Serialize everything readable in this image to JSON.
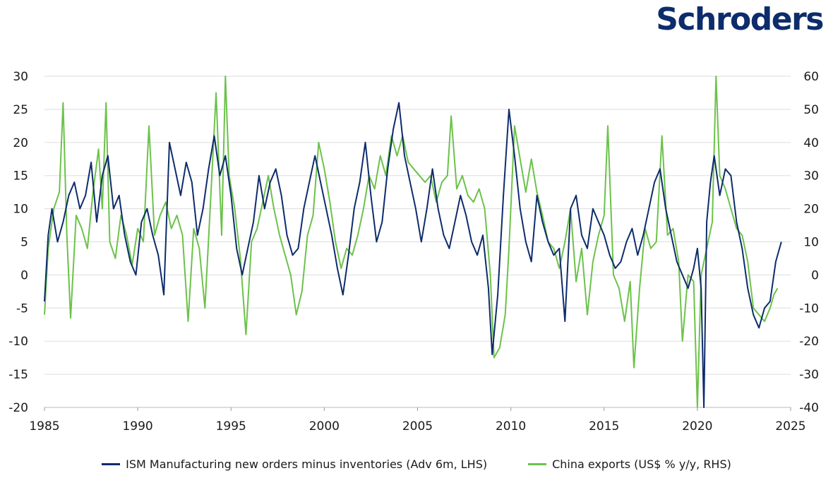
{
  "brand": {
    "name": "Schroders",
    "color": "#0d2c6b"
  },
  "colors": {
    "ism": "#0d2c6b",
    "china": "#6cc24a",
    "grid": "#dddddd"
  },
  "chart_data": {
    "type": "line",
    "title": "",
    "xlabel": "",
    "x_ticks": [
      "1985",
      "1990",
      "1995",
      "2000",
      "2005",
      "2010",
      "2015",
      "2020",
      "2025"
    ],
    "x_range": [
      1985,
      2025
    ],
    "left_axis": {
      "ticks": [
        "30",
        "25",
        "20",
        "15",
        "10",
        "5",
        "0",
        "-5",
        "-10",
        "-15",
        "-20"
      ],
      "range": [
        -20,
        30
      ]
    },
    "right_axis": {
      "ticks": [
        "60",
        "50",
        "40",
        "30",
        "20",
        "10",
        "0",
        "-10",
        "-20",
        "-30",
        "-40"
      ],
      "range": [
        -40,
        60
      ]
    },
    "grid": true,
    "legend_position": "bottom",
    "series": [
      {
        "name": "ISM Manufacturing new orders minus inventories (Adv 6m, LHS)",
        "axis": "left",
        "points": [
          [
            1985.0,
            -4
          ],
          [
            1985.2,
            6
          ],
          [
            1985.4,
            10
          ],
          [
            1985.7,
            5
          ],
          [
            1986.0,
            8
          ],
          [
            1986.3,
            12
          ],
          [
            1986.6,
            14
          ],
          [
            1986.9,
            10
          ],
          [
            1987.2,
            12
          ],
          [
            1987.5,
            17
          ],
          [
            1987.8,
            8
          ],
          [
            1988.1,
            15
          ],
          [
            1988.4,
            18
          ],
          [
            1988.7,
            10
          ],
          [
            1989.0,
            12
          ],
          [
            1989.3,
            6
          ],
          [
            1989.6,
            2
          ],
          [
            1989.9,
            0
          ],
          [
            1990.2,
            8
          ],
          [
            1990.5,
            10
          ],
          [
            1990.8,
            6
          ],
          [
            1991.1,
            3
          ],
          [
            1991.4,
            -3
          ],
          [
            1991.7,
            20
          ],
          [
            1992.0,
            16
          ],
          [
            1992.3,
            12
          ],
          [
            1992.6,
            17
          ],
          [
            1992.9,
            14
          ],
          [
            1993.2,
            6
          ],
          [
            1993.5,
            10
          ],
          [
            1993.8,
            16
          ],
          [
            1994.1,
            21
          ],
          [
            1994.4,
            15
          ],
          [
            1994.7,
            18
          ],
          [
            1995.0,
            12
          ],
          [
            1995.3,
            4
          ],
          [
            1995.6,
            0
          ],
          [
            1995.9,
            4
          ],
          [
            1996.2,
            8
          ],
          [
            1996.5,
            15
          ],
          [
            1996.8,
            10
          ],
          [
            1997.1,
            14
          ],
          [
            1997.4,
            16
          ],
          [
            1997.7,
            12
          ],
          [
            1998.0,
            6
          ],
          [
            1998.3,
            3
          ],
          [
            1998.6,
            4
          ],
          [
            1998.9,
            10
          ],
          [
            1999.2,
            14
          ],
          [
            1999.5,
            18
          ],
          [
            1999.8,
            14
          ],
          [
            2000.1,
            10
          ],
          [
            2000.4,
            6
          ],
          [
            2000.7,
            1
          ],
          [
            2001.0,
            -3
          ],
          [
            2001.3,
            3
          ],
          [
            2001.6,
            10
          ],
          [
            2001.9,
            14
          ],
          [
            2002.2,
            20
          ],
          [
            2002.5,
            12
          ],
          [
            2002.8,
            5
          ],
          [
            2003.1,
            8
          ],
          [
            2003.4,
            16
          ],
          [
            2003.7,
            22
          ],
          [
            2004.0,
            26
          ],
          [
            2004.3,
            18
          ],
          [
            2004.6,
            14
          ],
          [
            2004.9,
            10
          ],
          [
            2005.2,
            5
          ],
          [
            2005.5,
            10
          ],
          [
            2005.8,
            16
          ],
          [
            2006.1,
            10
          ],
          [
            2006.4,
            6
          ],
          [
            2006.7,
            4
          ],
          [
            2007.0,
            8
          ],
          [
            2007.3,
            12
          ],
          [
            2007.6,
            9
          ],
          [
            2007.9,
            5
          ],
          [
            2008.2,
            3
          ],
          [
            2008.5,
            6
          ],
          [
            2008.8,
            -2
          ],
          [
            2009.0,
            -12
          ],
          [
            2009.3,
            -3
          ],
          [
            2009.6,
            12
          ],
          [
            2009.9,
            25
          ],
          [
            2010.2,
            18
          ],
          [
            2010.5,
            10
          ],
          [
            2010.8,
            5
          ],
          [
            2011.1,
            2
          ],
          [
            2011.4,
            12
          ],
          [
            2011.7,
            8
          ],
          [
            2012.0,
            5
          ],
          [
            2012.3,
            3
          ],
          [
            2012.6,
            4
          ],
          [
            2012.9,
            -7
          ],
          [
            2013.2,
            10
          ],
          [
            2013.5,
            12
          ],
          [
            2013.8,
            6
          ],
          [
            2014.1,
            4
          ],
          [
            2014.4,
            10
          ],
          [
            2014.7,
            8
          ],
          [
            2015.0,
            6
          ],
          [
            2015.3,
            3
          ],
          [
            2015.6,
            1
          ],
          [
            2015.9,
            2
          ],
          [
            2016.2,
            5
          ],
          [
            2016.5,
            7
          ],
          [
            2016.8,
            3
          ],
          [
            2017.1,
            6
          ],
          [
            2017.4,
            10
          ],
          [
            2017.7,
            14
          ],
          [
            2018.0,
            16
          ],
          [
            2018.3,
            10
          ],
          [
            2018.6,
            6
          ],
          [
            2018.9,
            2
          ],
          [
            2019.2,
            0
          ],
          [
            2019.5,
            -2
          ],
          [
            2019.8,
            1
          ],
          [
            2020.0,
            4
          ],
          [
            2020.2,
            -2
          ],
          [
            2020.35,
            -20
          ],
          [
            2020.5,
            8
          ],
          [
            2020.7,
            14
          ],
          [
            2020.9,
            18
          ],
          [
            2021.2,
            12
          ],
          [
            2021.5,
            16
          ],
          [
            2021.8,
            15
          ],
          [
            2022.1,
            8
          ],
          [
            2022.4,
            4
          ],
          [
            2022.7,
            -2
          ],
          [
            2023.0,
            -6
          ],
          [
            2023.3,
            -8
          ],
          [
            2023.6,
            -5
          ],
          [
            2023.9,
            -4
          ],
          [
            2024.2,
            2
          ],
          [
            2024.5,
            5
          ]
        ]
      },
      {
        "name": "China exports (US$ % y/y, RHS)",
        "axis": "right",
        "points": [
          [
            1985.0,
            -12
          ],
          [
            1985.2,
            8
          ],
          [
            1985.5,
            20
          ],
          [
            1985.8,
            25
          ],
          [
            1986.0,
            52
          ],
          [
            1986.2,
            12
          ],
          [
            1986.4,
            -13
          ],
          [
            1986.7,
            18
          ],
          [
            1987.0,
            14
          ],
          [
            1987.3,
            8
          ],
          [
            1987.6,
            25
          ],
          [
            1987.9,
            38
          ],
          [
            1988.1,
            20
          ],
          [
            1988.3,
            52
          ],
          [
            1988.5,
            10
          ],
          [
            1988.8,
            5
          ],
          [
            1989.1,
            18
          ],
          [
            1989.4,
            12
          ],
          [
            1989.7,
            3
          ],
          [
            1990.0,
            14
          ],
          [
            1990.3,
            10
          ],
          [
            1990.6,
            45
          ],
          [
            1990.9,
            12
          ],
          [
            1991.2,
            18
          ],
          [
            1991.5,
            22
          ],
          [
            1991.8,
            14
          ],
          [
            1992.1,
            18
          ],
          [
            1992.4,
            12
          ],
          [
            1992.7,
            -14
          ],
          [
            1993.0,
            14
          ],
          [
            1993.3,
            8
          ],
          [
            1993.6,
            -10
          ],
          [
            1993.9,
            22
          ],
          [
            1994.2,
            55
          ],
          [
            1994.5,
            12
          ],
          [
            1994.7,
            60
          ],
          [
            1994.9,
            30
          ],
          [
            1995.2,
            20
          ],
          [
            1995.5,
            5
          ],
          [
            1995.8,
            -18
          ],
          [
            1996.1,
            10
          ],
          [
            1996.4,
            14
          ],
          [
            1996.7,
            22
          ],
          [
            1997.0,
            30
          ],
          [
            1997.3,
            20
          ],
          [
            1997.6,
            12
          ],
          [
            1997.9,
            6
          ],
          [
            1998.2,
            0
          ],
          [
            1998.5,
            -12
          ],
          [
            1998.8,
            -5
          ],
          [
            1999.1,
            12
          ],
          [
            1999.4,
            18
          ],
          [
            1999.7,
            40
          ],
          [
            2000.0,
            32
          ],
          [
            2000.3,
            22
          ],
          [
            2000.6,
            10
          ],
          [
            2000.9,
            2
          ],
          [
            2001.2,
            8
          ],
          [
            2001.5,
            6
          ],
          [
            2001.8,
            12
          ],
          [
            2002.1,
            20
          ],
          [
            2002.4,
            30
          ],
          [
            2002.7,
            26
          ],
          [
            2003.0,
            36
          ],
          [
            2003.3,
            30
          ],
          [
            2003.6,
            42
          ],
          [
            2003.9,
            36
          ],
          [
            2004.2,
            42
          ],
          [
            2004.5,
            34
          ],
          [
            2004.8,
            32
          ],
          [
            2005.1,
            30
          ],
          [
            2005.4,
            28
          ],
          [
            2005.7,
            30
          ],
          [
            2006.0,
            22
          ],
          [
            2006.3,
            28
          ],
          [
            2006.6,
            30
          ],
          [
            2006.8,
            48
          ],
          [
            2007.1,
            26
          ],
          [
            2007.4,
            30
          ],
          [
            2007.7,
            24
          ],
          [
            2008.0,
            22
          ],
          [
            2008.3,
            26
          ],
          [
            2008.6,
            20
          ],
          [
            2008.9,
            0
          ],
          [
            2009.1,
            -25
          ],
          [
            2009.4,
            -22
          ],
          [
            2009.7,
            -12
          ],
          [
            2009.9,
            8
          ],
          [
            2010.2,
            45
          ],
          [
            2010.5,
            35
          ],
          [
            2010.8,
            25
          ],
          [
            2011.1,
            35
          ],
          [
            2011.4,
            25
          ],
          [
            2011.7,
            18
          ],
          [
            2012.0,
            10
          ],
          [
            2012.3,
            8
          ],
          [
            2012.6,
            2
          ],
          [
            2012.9,
            10
          ],
          [
            2013.2,
            20
          ],
          [
            2013.5,
            -2
          ],
          [
            2013.8,
            8
          ],
          [
            2014.1,
            -12
          ],
          [
            2014.4,
            4
          ],
          [
            2014.7,
            12
          ],
          [
            2015.0,
            18
          ],
          [
            2015.2,
            45
          ],
          [
            2015.5,
            0
          ],
          [
            2015.8,
            -4
          ],
          [
            2016.1,
            -14
          ],
          [
            2016.4,
            -2
          ],
          [
            2016.6,
            -28
          ],
          [
            2016.9,
            -4
          ],
          [
            2017.2,
            14
          ],
          [
            2017.5,
            8
          ],
          [
            2017.8,
            10
          ],
          [
            2018.1,
            42
          ],
          [
            2018.4,
            12
          ],
          [
            2018.7,
            14
          ],
          [
            2019.0,
            4
          ],
          [
            2019.2,
            -20
          ],
          [
            2019.5,
            0
          ],
          [
            2019.8,
            -2
          ],
          [
            2020.0,
            -40
          ],
          [
            2020.2,
            0
          ],
          [
            2020.5,
            8
          ],
          [
            2020.8,
            16
          ],
          [
            2021.0,
            60
          ],
          [
            2021.2,
            30
          ],
          [
            2021.5,
            26
          ],
          [
            2021.8,
            20
          ],
          [
            2022.1,
            14
          ],
          [
            2022.4,
            12
          ],
          [
            2022.7,
            4
          ],
          [
            2023.0,
            -10
          ],
          [
            2023.3,
            -12
          ],
          [
            2023.6,
            -14
          ],
          [
            2023.9,
            -10
          ],
          [
            2024.1,
            -6
          ],
          [
            2024.3,
            -4
          ]
        ]
      }
    ]
  }
}
